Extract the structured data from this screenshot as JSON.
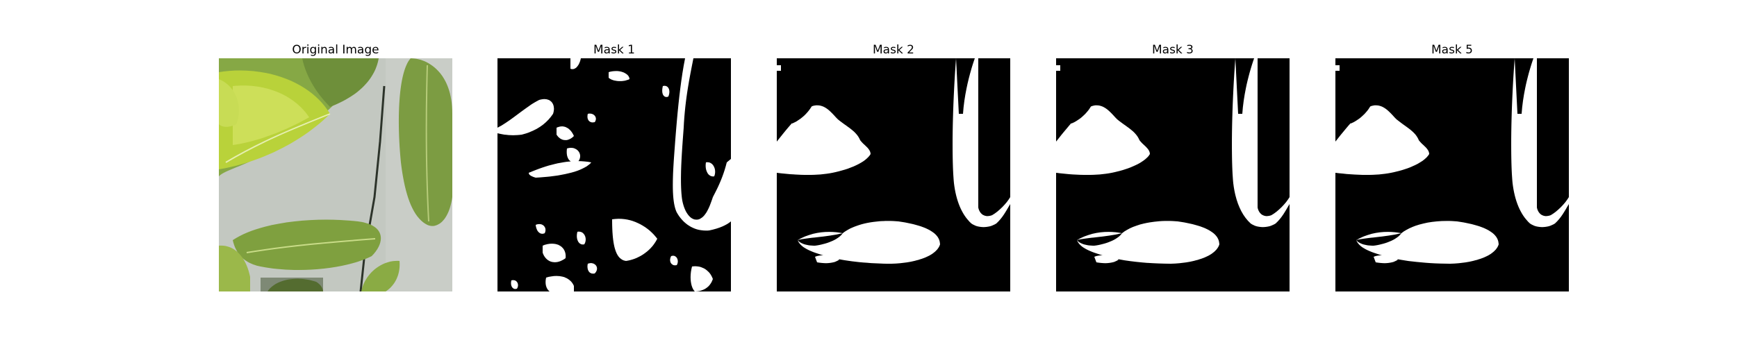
{
  "figure": {
    "panels": [
      {
        "title": "Original Image",
        "kind": "photo",
        "subject": "plant-leaves"
      },
      {
        "title": "Mask 1",
        "kind": "mask",
        "variant": "noisy"
      },
      {
        "title": "Mask 2",
        "kind": "mask",
        "variant": "clean"
      },
      {
        "title": "Mask 3",
        "kind": "mask",
        "variant": "clean"
      },
      {
        "title": "Mask 5",
        "kind": "mask",
        "variant": "clean"
      }
    ]
  },
  "colors": {
    "background": "#ffffff",
    "mask_background": "#000000",
    "mask_foreground": "#ffffff",
    "wall": "#c9cdc7",
    "leaf_bright": "#b9d23a",
    "leaf_mid": "#86a845",
    "leaf_dark": "#5f7e35",
    "vein": "#e6efb0",
    "shadow": "#3a4a2a"
  }
}
